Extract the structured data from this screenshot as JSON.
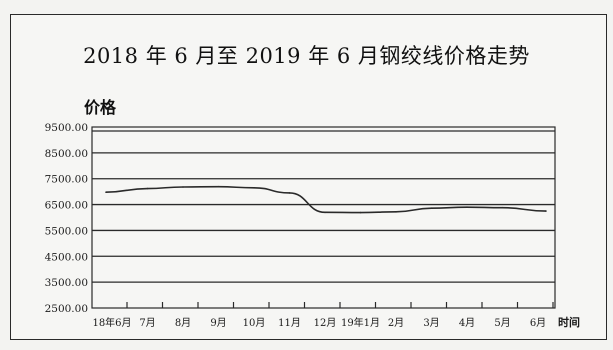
{
  "chart_data": {
    "type": "line",
    "title": "2018 年 6 月至 2019 年 6 月钢绞线价格走势",
    "ylabel": "价格",
    "xlabel": "时间",
    "grid": true,
    "legend": "none",
    "ylim": [
      2500,
      9500
    ],
    "yticks": [
      9500,
      8500,
      7500,
      6500,
      5500,
      4500,
      3500,
      2500
    ],
    "ytick_labels": [
      "9500.00",
      "8500.00",
      "7500.00",
      "6500.00",
      "5500.00",
      "4500.00",
      "3500.00",
      "2500.00"
    ],
    "categories": [
      "18年6月",
      "7月",
      "8月",
      "9月",
      "10月",
      "11月",
      "12月",
      "19年1月",
      "2月",
      "3月",
      "4月",
      "5月",
      "6月"
    ],
    "series": [
      {
        "values": [
          6980,
          7120,
          7180,
          7190,
          7150,
          6950,
          6200,
          6190,
          6220,
          6360,
          6400,
          6380,
          6250
        ],
        "color": "#2a2a2a"
      }
    ]
  }
}
